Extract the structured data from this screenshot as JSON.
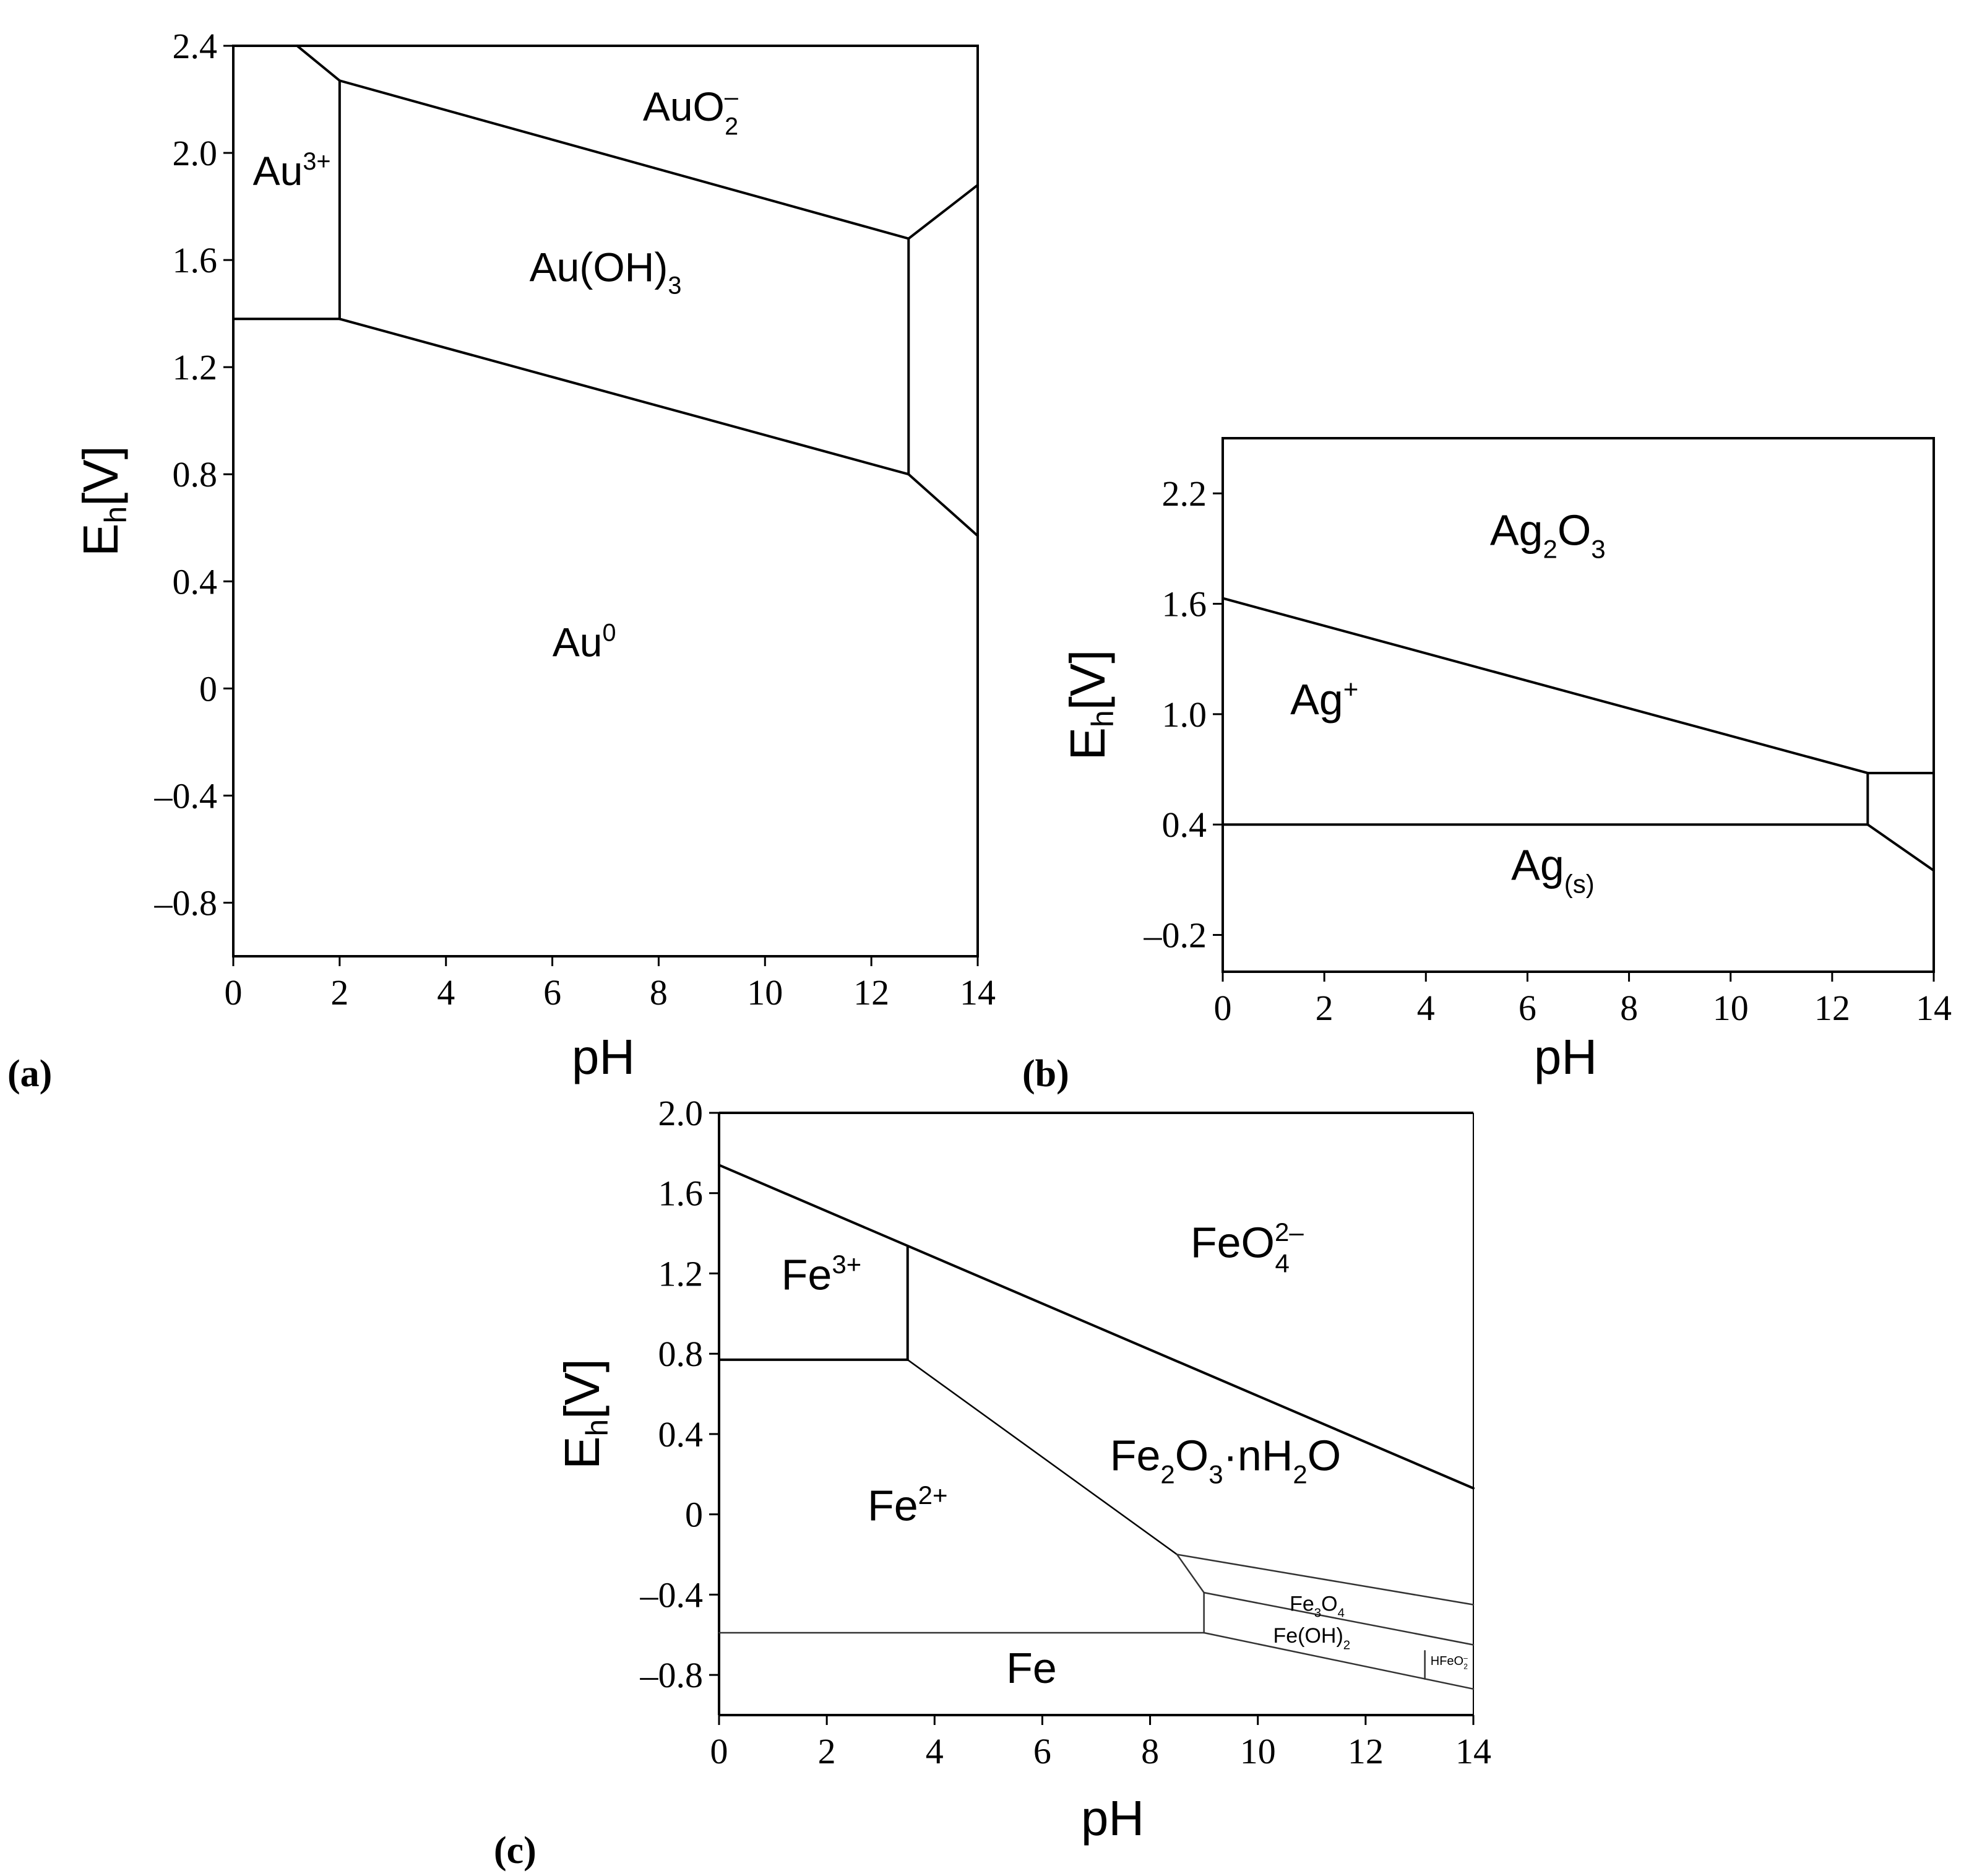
{
  "chart_data": [
    {
      "panel": "(a)",
      "type": "pourbaix",
      "xlabel": "pH",
      "ylabel": "E",
      "ylabel_sub": "h",
      "ylabel_unit": "[V]",
      "xlim": [
        0,
        14
      ],
      "ylim": [
        -1.0,
        2.4
      ],
      "xticks": [
        "0",
        "2",
        "4",
        "6",
        "8",
        "10",
        "12",
        "14"
      ],
      "xtick_values": [
        0,
        2,
        4,
        6,
        8,
        10,
        12,
        14
      ],
      "yticks": [
        "2.4",
        "2.0",
        "1.6",
        "1.2",
        "0.8",
        "0.4",
        "0",
        "–0.4",
        "–0.8"
      ],
      "ytick_values": [
        2.4,
        2.0,
        1.6,
        1.2,
        0.8,
        0.4,
        0,
        -0.4,
        -0.8
      ],
      "boundaries": [
        [
          [
            0,
            1.38
          ],
          [
            2.0,
            1.38
          ]
        ],
        [
          [
            2.0,
            1.38
          ],
          [
            2.0,
            2.27
          ]
        ],
        [
          [
            1.2,
            2.4
          ],
          [
            2.0,
            2.27
          ]
        ],
        [
          [
            2.0,
            2.27
          ],
          [
            12.7,
            1.68
          ]
        ],
        [
          [
            2.0,
            1.38
          ],
          [
            12.7,
            0.8
          ]
        ],
        [
          [
            12.7,
            0.8
          ],
          [
            12.7,
            1.68
          ]
        ],
        [
          [
            12.7,
            1.68
          ],
          [
            14,
            1.88
          ]
        ],
        [
          [
            12.7,
            0.8
          ],
          [
            14,
            0.57
          ]
        ]
      ],
      "regions": [
        {
          "base": "Au",
          "sup": "3+",
          "sub": "",
          "x": 1.1,
          "y": 1.88
        },
        {
          "base": "AuO",
          "sup": "–",
          "sub": "2",
          "x": 8.6,
          "y": 2.12
        },
        {
          "base": "Au(OH)",
          "sup": "",
          "sub": "3",
          "x": 7.0,
          "y": 1.52
        },
        {
          "base": "Au",
          "sup": "0",
          "sub": "",
          "x": 6.6,
          "y": 0.12
        }
      ]
    },
    {
      "panel": "(b)",
      "type": "pourbaix",
      "xlabel": "pH",
      "ylabel": "E",
      "ylabel_sub": "h",
      "ylabel_unit": "[V]",
      "xlim": [
        0,
        14
      ],
      "ylim": [
        -0.4,
        2.5
      ],
      "xticks": [
        "0",
        "2",
        "4",
        "6",
        "8",
        "10",
        "12",
        "14"
      ],
      "xtick_values": [
        0,
        2,
        4,
        6,
        8,
        10,
        12,
        14
      ],
      "yticks": [
        "2.2",
        "1.6",
        "1.0",
        "0.4",
        "–0.2"
      ],
      "ytick_values": [
        2.2,
        1.6,
        1.0,
        0.4,
        -0.2
      ],
      "boundaries": [
        [
          [
            0,
            1.63
          ],
          [
            12.7,
            0.68
          ]
        ],
        [
          [
            0,
            0.4
          ],
          [
            12.7,
            0.4
          ]
        ],
        [
          [
            12.7,
            0.4
          ],
          [
            12.7,
            0.68
          ]
        ],
        [
          [
            12.7,
            0.68
          ],
          [
            14,
            0.68
          ]
        ],
        [
          [
            12.7,
            0.4
          ],
          [
            14,
            0.15
          ]
        ]
      ],
      "regions": [
        {
          "base": "Ag",
          "sup": "",
          "sub": "2",
          "base2": "O",
          "sub2": "3",
          "x": 6.4,
          "y": 1.92
        },
        {
          "base": "Ag",
          "sup": "+",
          "sub": "",
          "x": 2.0,
          "y": 1.0
        },
        {
          "base": "Ag",
          "sup": "",
          "sub": "(s)",
          "x": 6.5,
          "y": 0.1
        }
      ]
    },
    {
      "panel": "(c)",
      "type": "pourbaix",
      "xlabel": "pH",
      "ylabel": "E",
      "ylabel_sub": "h",
      "ylabel_unit": "[V]",
      "xlim": [
        0,
        14
      ],
      "ylim": [
        -1.0,
        2.0
      ],
      "xticks": [
        "0",
        "2",
        "4",
        "6",
        "8",
        "10",
        "12",
        "14"
      ],
      "xtick_values": [
        0,
        2,
        4,
        6,
        8,
        10,
        12,
        14
      ],
      "yticks": [
        "2.0",
        "1.6",
        "1.2",
        "0.8",
        "0.4",
        "0",
        "–0.4",
        "–0.8"
      ],
      "ytick_values": [
        2.0,
        1.6,
        1.2,
        0.8,
        0.4,
        0,
        -0.4,
        -0.8
      ],
      "boundaries": [
        [
          [
            0,
            1.74
          ],
          [
            14,
            0.13
          ]
        ],
        [
          [
            3.5,
            1.33
          ],
          [
            3.5,
            0.77
          ]
        ],
        [
          [
            0,
            0.77
          ],
          [
            3.5,
            0.77
          ]
        ],
        [
          [
            3.5,
            0.77
          ],
          [
            8.5,
            -0.2
          ]
        ],
        [
          [
            8.5,
            -0.2
          ],
          [
            9.0,
            -0.39
          ]
        ],
        [
          [
            0,
            -0.59
          ],
          [
            9.0,
            -0.59
          ]
        ],
        [
          [
            9.0,
            -0.39
          ],
          [
            9.0,
            -0.59
          ]
        ],
        [
          [
            8.5,
            -0.2
          ],
          [
            14,
            -0.45
          ]
        ],
        [
          [
            9.0,
            -0.39
          ],
          [
            14,
            -0.65
          ]
        ],
        [
          [
            9.0,
            -0.59
          ],
          [
            14,
            -0.87
          ]
        ],
        [
          [
            13.1,
            -0.68
          ],
          [
            13.1,
            -0.82
          ]
        ]
      ],
      "regions": [
        {
          "base": "Fe",
          "sup": "3+",
          "sub": "",
          "x": 1.9,
          "y": 1.12
        },
        {
          "base": "FeO",
          "sup": "2–",
          "sub": "4",
          "x": 9.8,
          "y": 1.28
        },
        {
          "base": "Fe",
          "sup": "",
          "sub": "2",
          "base2": "O",
          "sub2": "3",
          "tail": "·nH",
          "sub3": "2",
          "tail2": "O",
          "x": 9.4,
          "y": 0.22
        },
        {
          "base": "Fe",
          "sup": "2+",
          "sub": "",
          "x": 3.5,
          "y": -0.03
        },
        {
          "base": "Fe",
          "sup": "",
          "sub": "3",
          "base2": "O",
          "sub2": "4",
          "x": 11.1,
          "y": -0.48
        },
        {
          "base": "Fe(OH)",
          "sup": "",
          "sub": "2",
          "x": 11.0,
          "y": -0.64
        },
        {
          "base": "HFeO",
          "sup": "–",
          "sub": "2",
          "x": 13.55,
          "y": -0.75
        },
        {
          "base": "Fe",
          "sup": "",
          "sub": "",
          "x": 5.8,
          "y": -0.84
        }
      ]
    }
  ]
}
